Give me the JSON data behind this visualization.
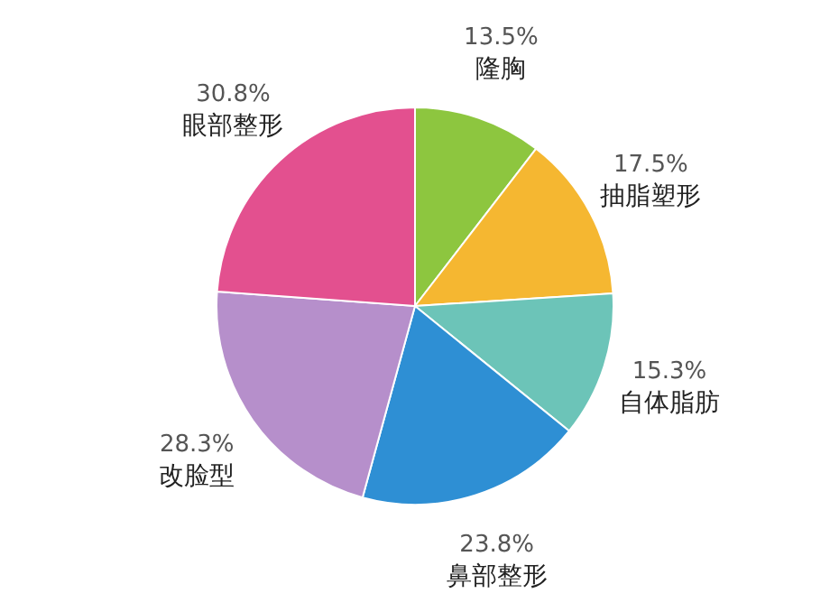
{
  "chart_data": {
    "type": "pie",
    "categories": [
      "隆胸",
      "抽脂塑形",
      "自体脂肪",
      "鼻部整形",
      "改脸型",
      "眼部整形"
    ],
    "values": [
      13.5,
      17.5,
      15.3,
      23.8,
      28.3,
      30.8
    ],
    "colors": [
      "#8dc63f",
      "#f5b731",
      "#6cc4b8",
      "#2e8fd4",
      "#b68fcb",
      "#e3508f"
    ],
    "value_labels": [
      "13.5%",
      "17.5%",
      "15.3%",
      "23.8%",
      "28.3%",
      "30.8%"
    ]
  }
}
